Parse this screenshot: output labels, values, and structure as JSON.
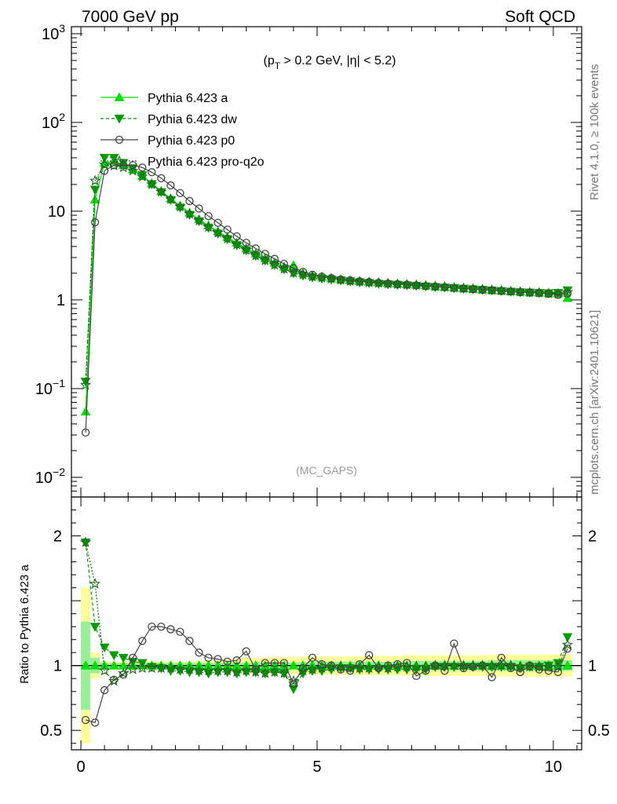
{
  "header": {
    "left": "7000 GeV pp",
    "right": "Soft QCD"
  },
  "side_labels": {
    "rivet": "Rivet 4.1.0, ≥ 100k events",
    "mcplots": "mcplots.cern.ch [arXiv:2401.10621]"
  },
  "chart_data": {
    "type": "line",
    "title": "(p_T > 0.2 GeV, |η| < 5.2)",
    "title_parts": {
      "open": "(p",
      "sub": "T",
      "rest": " > 0.2 GeV, |η| < 5.2)"
    },
    "watermark": "(MC_GAPS)",
    "xlabel": "",
    "ylabel": "",
    "xlim": [
      -0.2,
      10.6
    ],
    "ylim": [
      0.006,
      1200
    ],
    "yscale": "log",
    "x_ticks": [
      0,
      5,
      10
    ],
    "x_tick_labels": [
      "0",
      "5",
      "10"
    ],
    "y_ticks": [
      0.01,
      0.1,
      1,
      10,
      100,
      1000
    ],
    "y_tick_labels": [
      {
        "base": "10",
        "exp": "−2"
      },
      {
        "base": "10",
        "exp": "−1"
      },
      {
        "base": "1",
        "exp": ""
      },
      {
        "base": "10",
        "exp": ""
      },
      {
        "base": "10",
        "exp": "2"
      },
      {
        "base": "10",
        "exp": "3"
      }
    ],
    "legend_position": "top-left",
    "x": [
      0.1,
      0.3,
      0.5,
      0.7,
      0.9,
      1.1,
      1.3,
      1.5,
      1.7,
      1.9,
      2.1,
      2.3,
      2.5,
      2.7,
      2.9,
      3.1,
      3.3,
      3.5,
      3.7,
      3.9,
      4.1,
      4.3,
      4.5,
      4.7,
      4.9,
      5.1,
      5.3,
      5.5,
      5.7,
      5.9,
      6.1,
      6.3,
      6.5,
      6.7,
      6.9,
      7.1,
      7.3,
      7.5,
      7.7,
      7.9,
      8.1,
      8.3,
      8.5,
      8.7,
      8.9,
      9.1,
      9.3,
      9.5,
      9.7,
      9.9,
      10.1,
      10.3
    ],
    "series": [
      {
        "name": "Pythia 6.423 a",
        "color": "#00dd00",
        "marker": "triangle-up",
        "line": "solid",
        "values": [
          0.055,
          13.5,
          35.0,
          37.0,
          33.0,
          29.5,
          25.0,
          20.5,
          16.8,
          13.9,
          11.5,
          9.6,
          8.1,
          6.9,
          5.9,
          5.1,
          4.4,
          3.8,
          3.33,
          2.95,
          2.62,
          2.36,
          2.45,
          2.0,
          1.88,
          1.82,
          1.75,
          1.7,
          1.66,
          1.63,
          1.6,
          1.57,
          1.55,
          1.52,
          1.5,
          1.48,
          1.46,
          1.42,
          1.4,
          1.37,
          1.35,
          1.33,
          1.31,
          1.29,
          1.27,
          1.25,
          1.24,
          1.22,
          1.21,
          1.19,
          1.18,
          1.05
        ]
      },
      {
        "name": "Pythia 6.423 dw",
        "color": "#009900",
        "marker": "triangle-down",
        "line": "dashed",
        "values": [
          0.12,
          17.5,
          40.0,
          40.0,
          35.0,
          30.5,
          25.5,
          20.2,
          16.4,
          13.4,
          11.0,
          9.1,
          7.7,
          6.5,
          5.6,
          4.85,
          4.15,
          3.62,
          3.15,
          2.78,
          2.48,
          2.22,
          2.0,
          1.88,
          1.8,
          1.74,
          1.7,
          1.66,
          1.62,
          1.58,
          1.55,
          1.52,
          1.5,
          1.48,
          1.46,
          1.44,
          1.42,
          1.4,
          1.38,
          1.36,
          1.34,
          1.32,
          1.3,
          1.28,
          1.26,
          1.24,
          1.22,
          1.21,
          1.2,
          1.19,
          1.2,
          1.28
        ]
      },
      {
        "name": "Pythia 6.423 p0",
        "color": "#444444",
        "marker": "open-circle",
        "line": "solid",
        "values": [
          0.032,
          7.5,
          28.5,
          33.0,
          33.0,
          33.0,
          31.0,
          27.5,
          23.5,
          19.5,
          16.0,
          13.0,
          10.7,
          8.8,
          7.4,
          6.2,
          5.2,
          4.4,
          3.8,
          3.3,
          2.9,
          2.55,
          2.28,
          2.07,
          1.92,
          1.83,
          1.76,
          1.7,
          1.66,
          1.62,
          1.59,
          1.56,
          1.53,
          1.51,
          1.49,
          1.46,
          1.43,
          1.41,
          1.39,
          1.36,
          1.34,
          1.32,
          1.3,
          1.28,
          1.26,
          1.24,
          1.22,
          1.21,
          1.19,
          1.17,
          1.14,
          1.18
        ]
      },
      {
        "name": "Pythia 6.423 pro-q2o",
        "color": "#226622",
        "marker": "open-star",
        "line": "dotted",
        "values": [
          0.11,
          22.0,
          33.5,
          32.5,
          31.0,
          28.5,
          24.5,
          20.0,
          16.5,
          13.6,
          11.2,
          9.3,
          7.8,
          6.6,
          5.7,
          4.9,
          4.2,
          3.65,
          3.15,
          2.78,
          2.48,
          2.23,
          2.02,
          1.92,
          1.82,
          1.78,
          1.73,
          1.68,
          1.63,
          1.6,
          1.57,
          1.55,
          1.52,
          1.5,
          1.48,
          1.46,
          1.44,
          1.42,
          1.4,
          1.37,
          1.35,
          1.33,
          1.31,
          1.29,
          1.27,
          1.25,
          1.23,
          1.21,
          1.2,
          1.18,
          1.17,
          1.22
        ]
      }
    ],
    "ratio": {
      "ylabel": "Ratio to Pythia 6.423 a",
      "ylim": [
        0.35,
        2.3
      ],
      "y_ticks": [
        0.5,
        1,
        2
      ],
      "y_tick_labels": [
        "0.5",
        "1",
        "2"
      ],
      "reference_line": 1,
      "band_inner": [
        0.34,
        0.06,
        0.02,
        0.02,
        0.02,
        0.02,
        0.02,
        0.02,
        0.02,
        0.02,
        0.02,
        0.02,
        0.02,
        0.02,
        0.02,
        0.02,
        0.02,
        0.02,
        0.025,
        0.025,
        0.025,
        0.025,
        0.025,
        0.025,
        0.03,
        0.03,
        0.03,
        0.03,
        0.03,
        0.03,
        0.03,
        0.03,
        0.03,
        0.03,
        0.03,
        0.035,
        0.035,
        0.035,
        0.035,
        0.035,
        0.035,
        0.035,
        0.035,
        0.04,
        0.04,
        0.04,
        0.04,
        0.04,
        0.04,
        0.04,
        0.04,
        0.04
      ],
      "band_outer": [
        0.6,
        0.1,
        0.03,
        0.03,
        0.03,
        0.03,
        0.03,
        0.03,
        0.03,
        0.03,
        0.03,
        0.03,
        0.035,
        0.04,
        0.04,
        0.05,
        0.05,
        0.06,
        0.06,
        0.06,
        0.065,
        0.065,
        0.065,
        0.07,
        0.07,
        0.07,
        0.07,
        0.07,
        0.07,
        0.075,
        0.075,
        0.075,
        0.075,
        0.075,
        0.08,
        0.08,
        0.08,
        0.08,
        0.08,
        0.08,
        0.08,
        0.08,
        0.08,
        0.085,
        0.085,
        0.085,
        0.085,
        0.085,
        0.085,
        0.085,
        0.085,
        0.085
      ],
      "series": [
        {
          "name": "Pythia 6.423 dw",
          "values": [
            1.95,
            1.3,
            1.14,
            1.08,
            1.06,
            1.03,
            1.02,
            0.99,
            0.98,
            0.96,
            0.96,
            0.95,
            0.95,
            0.94,
            0.95,
            0.95,
            0.94,
            0.95,
            0.95,
            0.94,
            0.95,
            0.94,
            0.82,
            0.94,
            0.96,
            0.96,
            0.97,
            0.98,
            0.98,
            0.97,
            0.97,
            0.97,
            0.97,
            0.97,
            0.97,
            0.97,
            0.97,
            0.99,
            0.99,
            0.99,
            0.99,
            0.99,
            0.99,
            0.99,
            0.99,
            0.99,
            0.98,
            0.99,
            0.99,
            1.0,
            1.02,
            1.22
          ]
        },
        {
          "name": "Pythia 6.423 p0",
          "values": [
            0.58,
            0.56,
            0.81,
            0.89,
            0.93,
            1.06,
            1.19,
            1.3,
            1.3,
            1.28,
            1.26,
            1.19,
            1.1,
            1.06,
            1.05,
            1.03,
            1.04,
            1.11,
            0.97,
            1.02,
            1.02,
            1.02,
            0.86,
            0.98,
            1.06,
            1.01,
            1.0,
            0.97,
            0.96,
            1.01,
            1.08,
            0.98,
            1.0,
            1.01,
            1.02,
            0.92,
            0.96,
            1.0,
            0.96,
            1.17,
            0.98,
            0.99,
            1.0,
            0.91,
            1.06,
            0.98,
            0.95,
            1.0,
            0.97,
            0.96,
            0.95,
            1.13
          ]
        },
        {
          "name": "Pythia 6.423 pro-q2o",
          "values": [
            1.95,
            1.63,
            0.96,
            0.88,
            0.94,
            0.97,
            0.98,
            0.98,
            0.98,
            0.98,
            0.97,
            0.97,
            0.96,
            0.96,
            0.96,
            0.96,
            0.95,
            0.96,
            0.95,
            0.94,
            0.95,
            0.94,
            0.88,
            0.96,
            0.97,
            0.98,
            0.99,
            0.99,
            0.98,
            0.98,
            0.98,
            0.99,
            0.98,
            0.99,
            0.99,
            0.99,
            0.99,
            1.0,
            1.0,
            1.0,
            1.0,
            1.0,
            1.0,
            1.0,
            1.0,
            1.0,
            0.99,
            0.99,
            0.99,
            0.99,
            0.99,
            1.16
          ]
        }
      ]
    }
  }
}
